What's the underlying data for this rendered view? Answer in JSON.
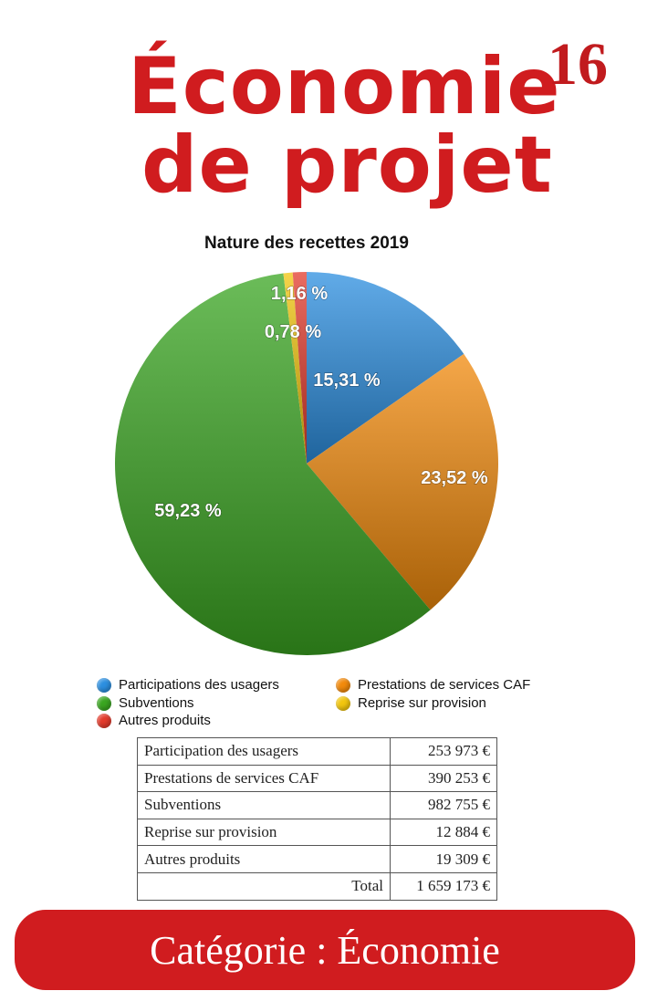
{
  "header": {
    "title_line_1": "Économie",
    "title_line_2": "de projet",
    "page_number": "16"
  },
  "chart_data": {
    "type": "pie",
    "title": "Nature des recettes 2019",
    "slices": [
      {
        "name": "Participations des usagers",
        "value": 15.31,
        "label": "15,31 %",
        "color": "#2c8fe0"
      },
      {
        "name": "Prestations de services CAF",
        "value": 23.52,
        "label": "23,52 %",
        "color": "#f28a0c"
      },
      {
        "name": "Subventions",
        "value": 59.23,
        "label": "59,23 %",
        "color": "#3aa621"
      },
      {
        "name": "Reprise sur provision",
        "value": 0.78,
        "label": "0,78 %",
        "color": "#f2c60e"
      },
      {
        "name": "Autres produits",
        "value": 1.16,
        "label": "1,16 %",
        "color": "#e33b2c"
      }
    ],
    "legend": [
      {
        "name": "Participations des usagers",
        "color": "#2c8fe0"
      },
      {
        "name": "Prestations de services CAF",
        "color": "#f28a0c"
      },
      {
        "name": "Subventions",
        "color": "#3aa621"
      },
      {
        "name": "Reprise sur provision",
        "color": "#f2c60e"
      },
      {
        "name": "Autres produits",
        "color": "#e33b2c"
      }
    ]
  },
  "table": {
    "rows": [
      {
        "label": "Participation des usagers",
        "amount": "253 973 €"
      },
      {
        "label": "Prestations de services CAF",
        "amount": "390 253 €"
      },
      {
        "label": "Subventions",
        "amount": "982 755 €"
      },
      {
        "label": "Reprise sur provision",
        "amount": "12 884 €"
      },
      {
        "label": "Autres produits",
        "amount": "19 309 €"
      }
    ],
    "total_label": "Total",
    "total_amount": "1 659 173 €"
  },
  "footer": {
    "text": "Catégorie : Économie"
  },
  "colors": {
    "title_red": "#d01c1f",
    "banner_red": "#d01c1f"
  }
}
